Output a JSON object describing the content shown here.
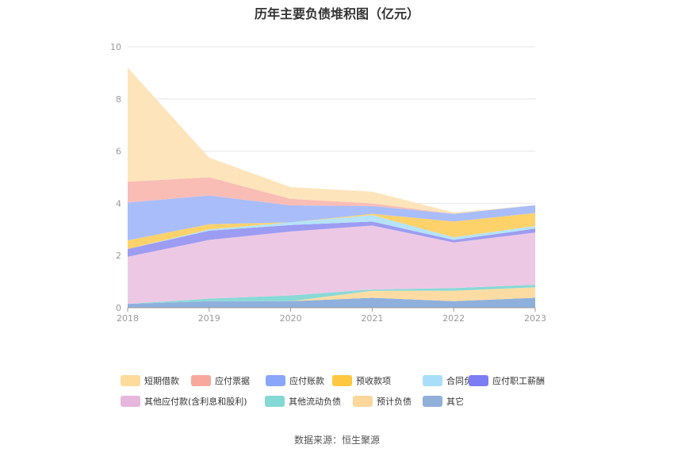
{
  "chart_data": {
    "type": "area",
    "stacked": true,
    "title": "历年主要负债堆积图（亿元）",
    "x": [
      "2018",
      "2019",
      "2020",
      "2021",
      "2022",
      "2023"
    ],
    "ylim": [
      0,
      10
    ],
    "yticks": [
      "0",
      "2",
      "4",
      "6",
      "8",
      "10"
    ],
    "grid": true,
    "legend_position": "bottom",
    "series": [
      {
        "name": "其它",
        "color": "#8fb0dc",
        "values": [
          0.15,
          0.25,
          0.25,
          0.38,
          0.25,
          0.38
        ]
      },
      {
        "name": "预计负债",
        "color": "#fddca4",
        "values": [
          0.0,
          0.0,
          0.0,
          0.27,
          0.4,
          0.4
        ]
      },
      {
        "name": "其他流动负债",
        "color": "#89d9d6",
        "values": [
          0.0,
          0.1,
          0.22,
          0.05,
          0.1,
          0.1
        ]
      },
      {
        "name": "其他应付款(含利息和股利)",
        "color": "#ecc8e4",
        "values": [
          1.8,
          2.25,
          2.45,
          2.45,
          1.75,
          2.0
        ]
      },
      {
        "name": "应付职工薪酬",
        "color": "#9c9cf2",
        "values": [
          0.3,
          0.35,
          0.25,
          0.15,
          0.1,
          0.15
        ]
      },
      {
        "name": "合同负债",
        "color": "#b4e3fa",
        "values": [
          0.0,
          0.05,
          0.1,
          0.25,
          0.1,
          0.1
        ]
      },
      {
        "name": "预收款项",
        "color": "#fed26a",
        "values": [
          0.33,
          0.2,
          0.0,
          0.05,
          0.6,
          0.5
        ]
      },
      {
        "name": "应付账款",
        "color": "#a9bdfb",
        "values": [
          1.45,
          1.1,
          0.65,
          0.3,
          0.3,
          0.3
        ]
      },
      {
        "name": "应付票据",
        "color": "#f9bdb5",
        "values": [
          0.8,
          0.7,
          0.25,
          0.1,
          0.0,
          0.0
        ]
      },
      {
        "name": "短期借款",
        "color": "#fee4bb",
        "values": [
          4.37,
          0.75,
          0.45,
          0.45,
          0.05,
          0.0
        ]
      }
    ],
    "legend": [
      {
        "name": "短期借款",
        "color": "#fedb9b"
      },
      {
        "name": "应付票据",
        "color": "#f8a79c"
      },
      {
        "name": "应付账款",
        "color": "#89a6f8"
      },
      {
        "name": "预收款项",
        "color": "#fdc83f"
      },
      {
        "name": "合同负债",
        "color": "#a8def9"
      },
      {
        "name": "应付职工薪酬",
        "color": "#7c7cf3"
      },
      {
        "name": "其他应付款(含利息和股利)",
        "color": "#e6b6dd"
      },
      {
        "name": "其他流动负债",
        "color": "#84d8d6"
      },
      {
        "name": "预计负债",
        "color": "#fdd69b"
      },
      {
        "name": "其它",
        "color": "#90afd9"
      }
    ],
    "source": "数据来源：恒生聚源"
  }
}
